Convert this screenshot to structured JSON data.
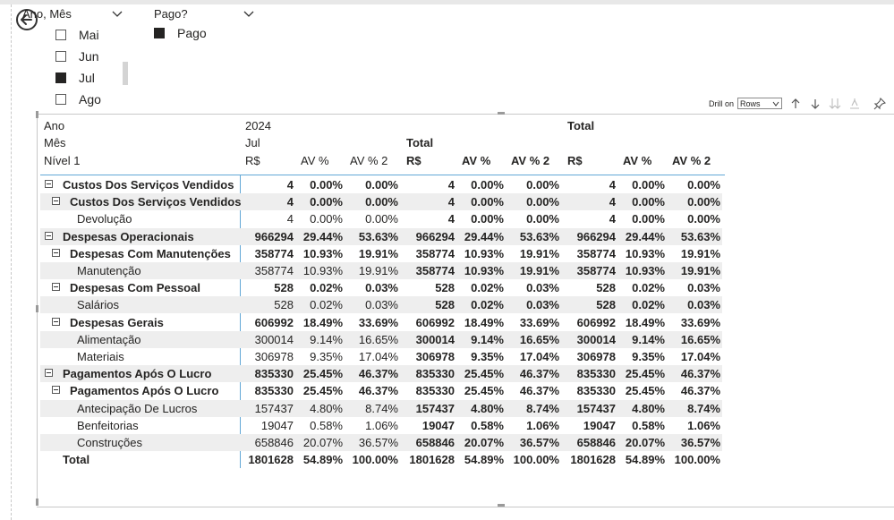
{
  "slicers": {
    "ano_mes": {
      "title": "Ano, Mês",
      "items": [
        {
          "label": "Mai",
          "checked": false
        },
        {
          "label": "Jun",
          "checked": false
        },
        {
          "label": "Jul",
          "checked": true
        },
        {
          "label": "Ago",
          "checked": false
        }
      ]
    },
    "pago": {
      "title": "Pago?",
      "items": [
        {
          "label": "Pago",
          "checked": true
        }
      ]
    }
  },
  "toolbar": {
    "drill_label": "Drill on",
    "drill_value": "Rows",
    "icons": [
      "drill-up-icon",
      "drill-down-icon",
      "expand-all-down-icon",
      "expand-hierarchy-icon",
      "pin-icon"
    ]
  },
  "matrix": {
    "headers": {
      "ano": "Ano",
      "mes": "Mês",
      "nivel": "Nível 1",
      "year": "2024",
      "month": "Jul",
      "total_month": "Total",
      "grand_total": "Total",
      "rs": "R$",
      "av": "AV %",
      "av2": "AV % 2"
    },
    "rows": [
      {
        "label": "Custos Dos Serviços Vendidos",
        "level": 0,
        "bold": true,
        "expand": true,
        "v": [
          "4",
          "0.00%",
          "0.00%",
          "4",
          "0.00%",
          "0.00%",
          "4",
          "0.00%",
          "0.00%"
        ]
      },
      {
        "label": "Custos Dos Serviços Vendidos",
        "level": 1,
        "bold": true,
        "expand": true,
        "v": [
          "4",
          "0.00%",
          "0.00%",
          "4",
          "0.00%",
          "0.00%",
          "4",
          "0.00%",
          "0.00%"
        ]
      },
      {
        "label": "Devolução",
        "level": 2,
        "bold": false,
        "expand": false,
        "v": [
          "4",
          "0.00%",
          "0.00%",
          "4",
          "0.00%",
          "0.00%",
          "4",
          "0.00%",
          "0.00%"
        ]
      },
      {
        "label": "Despesas Operacionais",
        "level": 0,
        "bold": true,
        "expand": true,
        "v": [
          "966294",
          "29.44%",
          "53.63%",
          "966294",
          "29.44%",
          "53.63%",
          "966294",
          "29.44%",
          "53.63%"
        ]
      },
      {
        "label": "Despesas Com Manutenções",
        "level": 1,
        "bold": true,
        "expand": true,
        "v": [
          "358774",
          "10.93%",
          "19.91%",
          "358774",
          "10.93%",
          "19.91%",
          "358774",
          "10.93%",
          "19.91%"
        ]
      },
      {
        "label": "Manutenção",
        "level": 2,
        "bold": false,
        "expand": false,
        "v": [
          "358774",
          "10.93%",
          "19.91%",
          "358774",
          "10.93%",
          "19.91%",
          "358774",
          "10.93%",
          "19.91%"
        ]
      },
      {
        "label": "Despesas Com Pessoal",
        "level": 1,
        "bold": true,
        "expand": true,
        "v": [
          "528",
          "0.02%",
          "0.03%",
          "528",
          "0.02%",
          "0.03%",
          "528",
          "0.02%",
          "0.03%"
        ]
      },
      {
        "label": "Salários",
        "level": 2,
        "bold": false,
        "expand": false,
        "v": [
          "528",
          "0.02%",
          "0.03%",
          "528",
          "0.02%",
          "0.03%",
          "528",
          "0.02%",
          "0.03%"
        ]
      },
      {
        "label": "Despesas Gerais",
        "level": 1,
        "bold": true,
        "expand": true,
        "v": [
          "606992",
          "18.49%",
          "33.69%",
          "606992",
          "18.49%",
          "33.69%",
          "606992",
          "18.49%",
          "33.69%"
        ]
      },
      {
        "label": "Alimentação",
        "level": 2,
        "bold": false,
        "expand": false,
        "v": [
          "300014",
          "9.14%",
          "16.65%",
          "300014",
          "9.14%",
          "16.65%",
          "300014",
          "9.14%",
          "16.65%"
        ]
      },
      {
        "label": "Materiais",
        "level": 2,
        "bold": false,
        "expand": false,
        "v": [
          "306978",
          "9.35%",
          "17.04%",
          "306978",
          "9.35%",
          "17.04%",
          "306978",
          "9.35%",
          "17.04%"
        ]
      },
      {
        "label": "Pagamentos Após O Lucro",
        "level": 0,
        "bold": true,
        "expand": true,
        "v": [
          "835330",
          "25.45%",
          "46.37%",
          "835330",
          "25.45%",
          "46.37%",
          "835330",
          "25.45%",
          "46.37%"
        ]
      },
      {
        "label": "Pagamentos Após O Lucro",
        "level": 1,
        "bold": true,
        "expand": true,
        "v": [
          "835330",
          "25.45%",
          "46.37%",
          "835330",
          "25.45%",
          "46.37%",
          "835330",
          "25.45%",
          "46.37%"
        ]
      },
      {
        "label": "Antecipação De Lucros",
        "level": 2,
        "bold": false,
        "expand": false,
        "v": [
          "157437",
          "4.80%",
          "8.74%",
          "157437",
          "4.80%",
          "8.74%",
          "157437",
          "4.80%",
          "8.74%"
        ]
      },
      {
        "label": "Benfeitorias",
        "level": 2,
        "bold": false,
        "expand": false,
        "v": [
          "19047",
          "0.58%",
          "1.06%",
          "19047",
          "0.58%",
          "1.06%",
          "19047",
          "0.58%",
          "1.06%"
        ]
      },
      {
        "label": "Construções",
        "level": 2,
        "bold": false,
        "expand": false,
        "v": [
          "658846",
          "20.07%",
          "36.57%",
          "658846",
          "20.07%",
          "36.57%",
          "658846",
          "20.07%",
          "36.57%"
        ]
      },
      {
        "label": "Total",
        "level": 0,
        "bold": true,
        "expand": false,
        "total": true,
        "v": [
          "1801628",
          "54.89%",
          "100.00%",
          "1801628",
          "54.89%",
          "100.00%",
          "1801628",
          "54.89%",
          "100.00%"
        ]
      }
    ]
  }
}
